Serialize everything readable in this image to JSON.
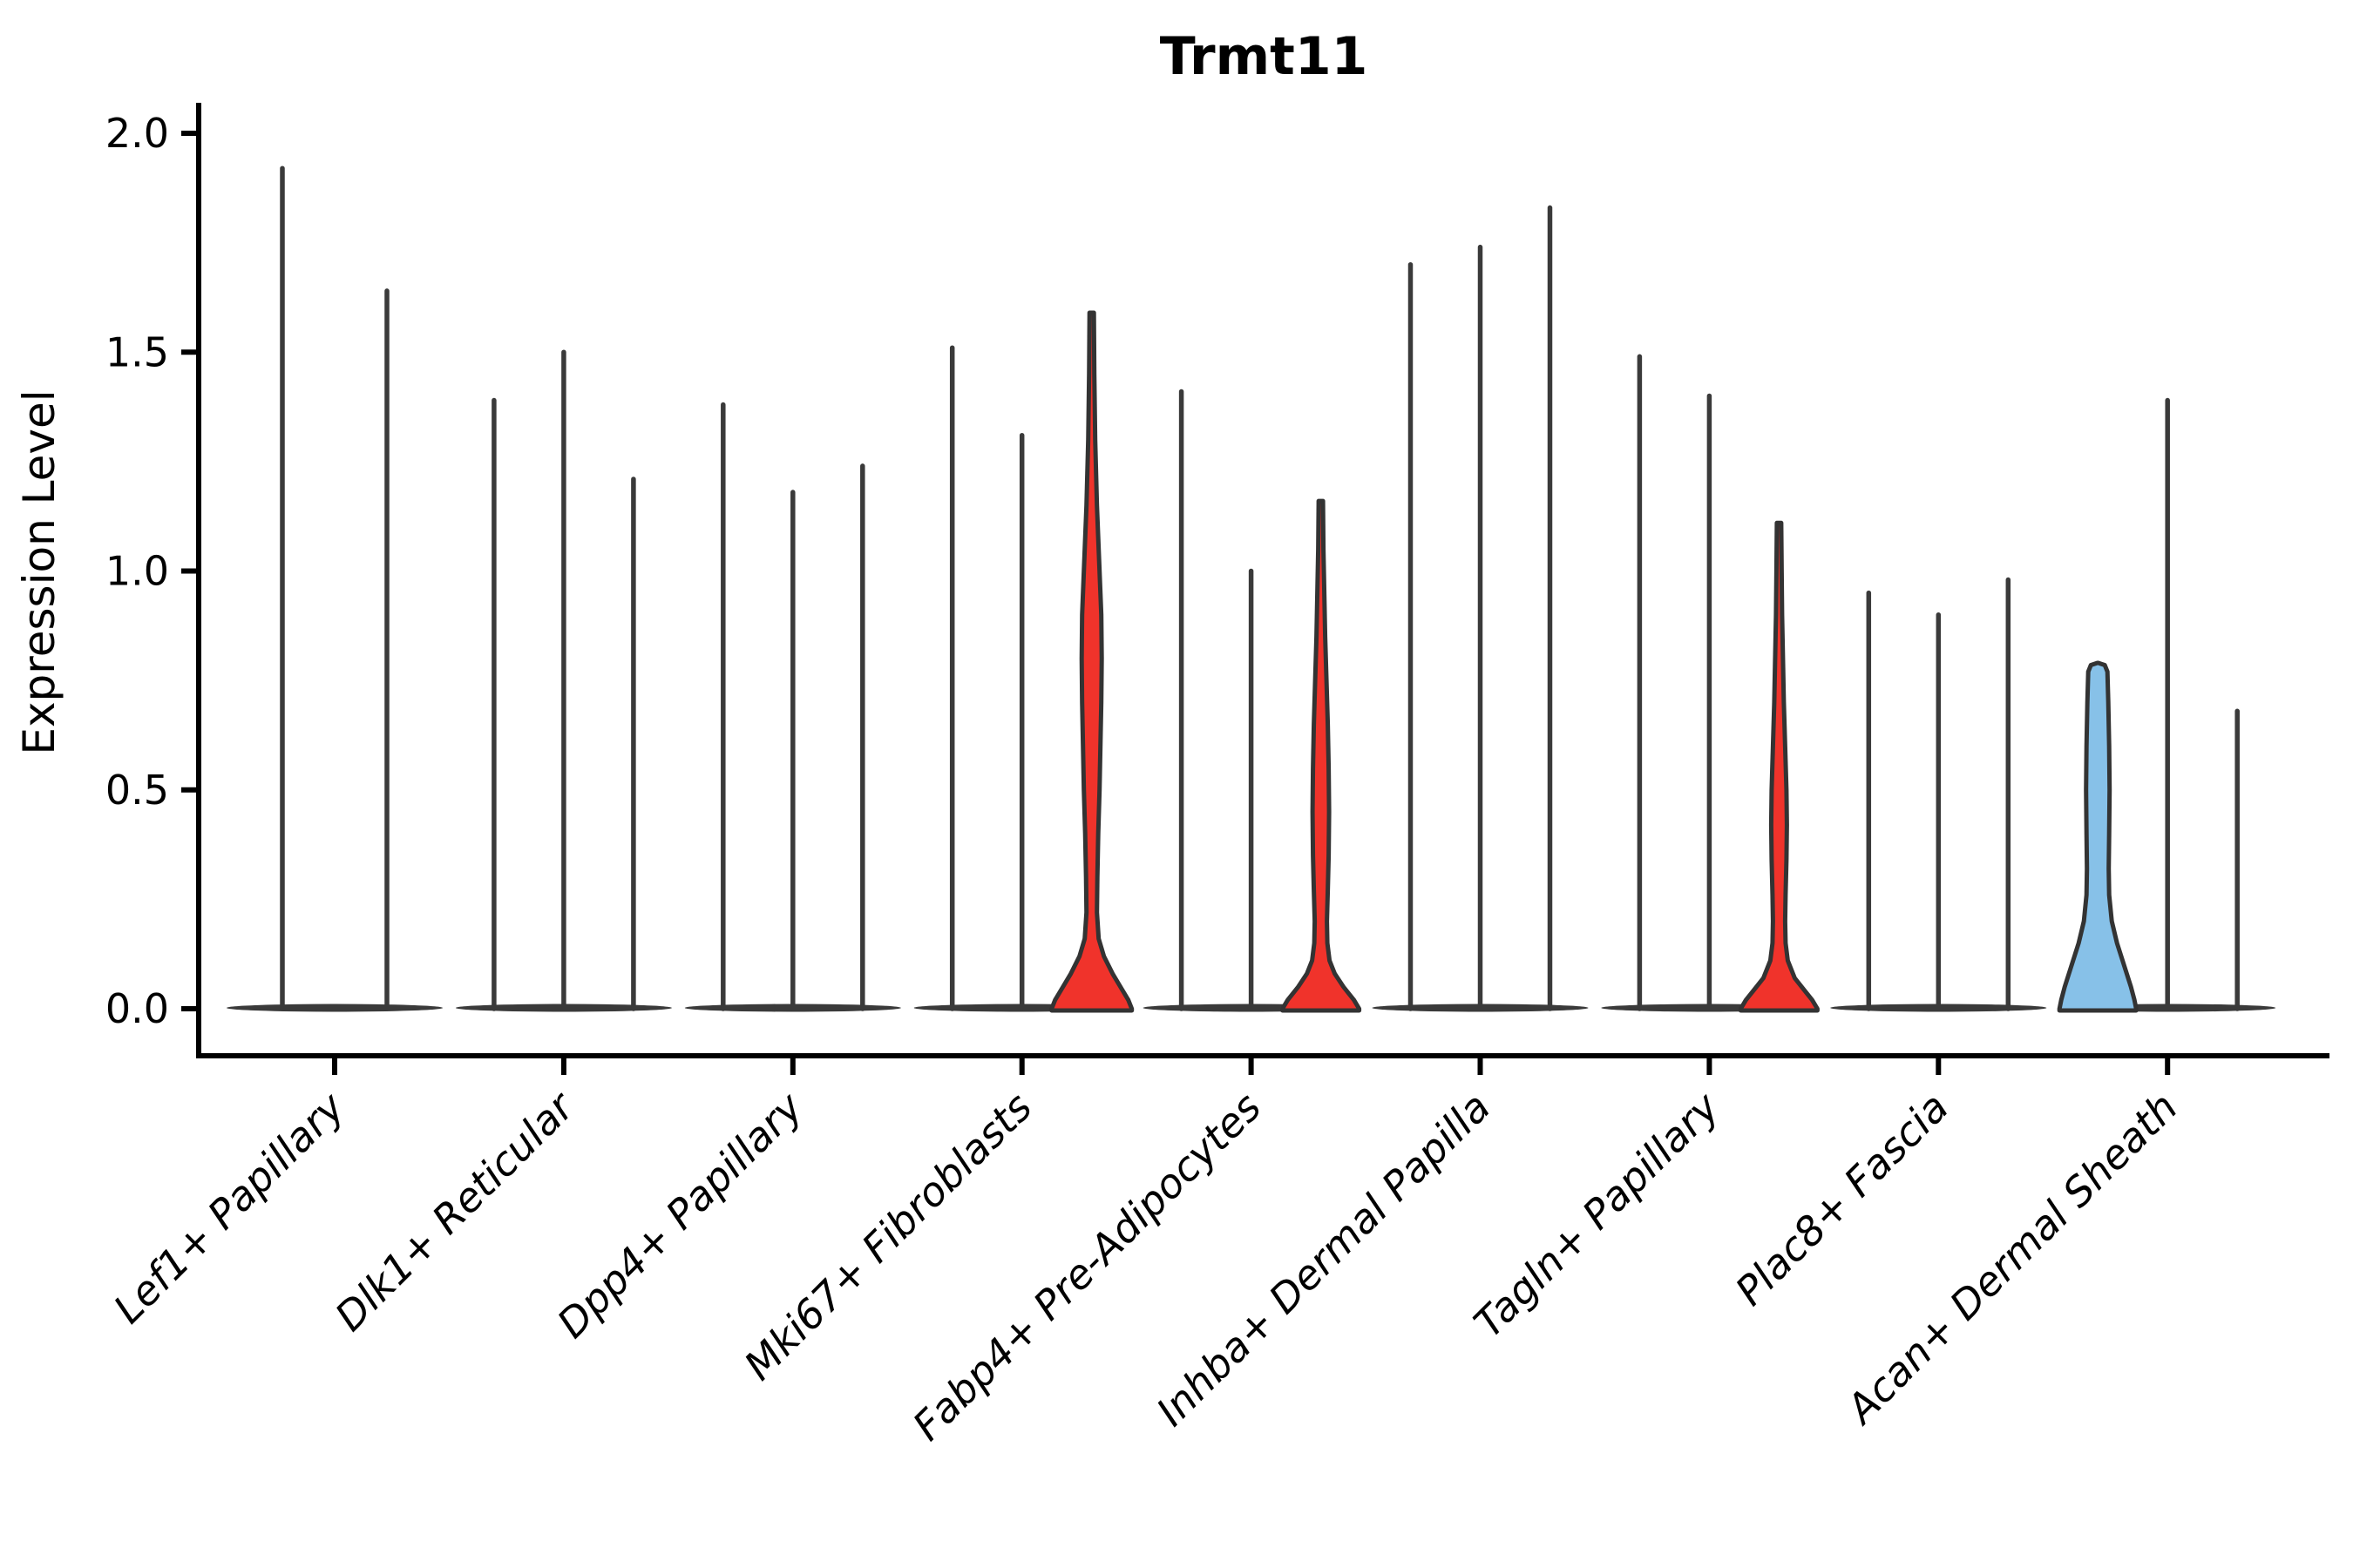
{
  "chart_data": {
    "type": "violin",
    "title": "Trmt11",
    "ylabel": "Expression Level",
    "xlabel": "",
    "ylim": [
      0.0,
      2.0
    ],
    "yticks": [
      0.0,
      0.5,
      1.0,
      1.5,
      2.0
    ],
    "ytick_labels": [
      "0.0",
      "0.5",
      "1.0",
      "1.5",
      "2.0"
    ],
    "grid": false,
    "legend": "none",
    "colors": {
      "spike_violin": "#3a3a3a",
      "highlight_red": "#f0332b",
      "highlight_blue": "#87c1e8",
      "outline": "#333333",
      "axis": "#000000",
      "background": "#ffffff"
    },
    "groups": [
      {
        "label": "Lef1+ Papillary",
        "violins": [
          {
            "max_expression": 1.92,
            "color": "black",
            "shape": "spike"
          },
          {
            "max_expression": 1.64,
            "color": "black",
            "shape": "spike"
          }
        ]
      },
      {
        "label": "Dlk1+ Reticular",
        "violins": [
          {
            "max_expression": 1.39,
            "color": "black",
            "shape": "spike"
          },
          {
            "max_expression": 1.5,
            "color": "black",
            "shape": "spike"
          },
          {
            "max_expression": 1.21,
            "color": "black",
            "shape": "spike"
          }
        ]
      },
      {
        "label": "Dpp4+ Papillary",
        "violins": [
          {
            "max_expression": 1.38,
            "color": "black",
            "shape": "spike"
          },
          {
            "max_expression": 1.18,
            "color": "black",
            "shape": "spike"
          },
          {
            "max_expression": 1.24,
            "color": "black",
            "shape": "spike"
          }
        ]
      },
      {
        "label": "Mki67+ Fibroblasts",
        "violins": [
          {
            "max_expression": 1.51,
            "color": "black",
            "shape": "spike"
          },
          {
            "max_expression": 1.31,
            "color": "black",
            "shape": "spike"
          },
          {
            "max_expression": 1.59,
            "color": "red",
            "shape": "body",
            "profile": [
              [
                1.59,
                2.5
              ],
              [
                1.45,
                3
              ],
              [
                1.3,
                4
              ],
              [
                1.15,
                6
              ],
              [
                1.0,
                9
              ],
              [
                0.9,
                11
              ],
              [
                0.8,
                11.5
              ],
              [
                0.7,
                11
              ],
              [
                0.6,
                10
              ],
              [
                0.5,
                9
              ],
              [
                0.4,
                7.5
              ],
              [
                0.3,
                6.5
              ],
              [
                0.22,
                6
              ],
              [
                0.16,
                8
              ],
              [
                0.12,
                14
              ],
              [
                0.08,
                24
              ],
              [
                0.05,
                33
              ],
              [
                0.02,
                42
              ],
              [
                0.0,
                46
              ]
            ]
          }
        ]
      },
      {
        "label": "Fabp4+ Pre-Adipocytes",
        "violins": [
          {
            "max_expression": 1.41,
            "color": "black",
            "shape": "spike"
          },
          {
            "max_expression": 1.0,
            "color": "black",
            "shape": "spike"
          },
          {
            "max_expression": 1.16,
            "color": "red",
            "shape": "body",
            "profile": [
              [
                1.16,
                2.5
              ],
              [
                1.05,
                3
              ],
              [
                0.95,
                4
              ],
              [
                0.85,
                5
              ],
              [
                0.75,
                6.5
              ],
              [
                0.65,
                8
              ],
              [
                0.55,
                9
              ],
              [
                0.45,
                9.5
              ],
              [
                0.35,
                9
              ],
              [
                0.27,
                8
              ],
              [
                0.2,
                7
              ],
              [
                0.15,
                7.5
              ],
              [
                0.11,
                10
              ],
              [
                0.08,
                16
              ],
              [
                0.05,
                26
              ],
              [
                0.02,
                38
              ],
              [
                0.0,
                44
              ]
            ]
          }
        ]
      },
      {
        "label": "Inhba+ Dermal Papilla",
        "violins": [
          {
            "max_expression": 1.7,
            "color": "black",
            "shape": "spike"
          },
          {
            "max_expression": 1.74,
            "color": "black",
            "shape": "spike"
          },
          {
            "max_expression": 1.83,
            "color": "black",
            "shape": "spike"
          }
        ]
      },
      {
        "label": "Tagln+ Papillary",
        "violins": [
          {
            "max_expression": 1.49,
            "color": "black",
            "shape": "spike"
          },
          {
            "max_expression": 1.4,
            "color": "black",
            "shape": "spike"
          },
          {
            "max_expression": 1.11,
            "color": "red",
            "shape": "body",
            "profile": [
              [
                1.11,
                2.5
              ],
              [
                1.0,
                3
              ],
              [
                0.9,
                3.5
              ],
              [
                0.8,
                4.5
              ],
              [
                0.7,
                5.5
              ],
              [
                0.6,
                7
              ],
              [
                0.5,
                8.5
              ],
              [
                0.42,
                9
              ],
              [
                0.34,
                8.5
              ],
              [
                0.26,
                7.5
              ],
              [
                0.2,
                7
              ],
              [
                0.15,
                7.5
              ],
              [
                0.11,
                10
              ],
              [
                0.07,
                18
              ],
              [
                0.04,
                30
              ],
              [
                0.02,
                38
              ],
              [
                0.0,
                44
              ]
            ]
          }
        ]
      },
      {
        "label": "Plac8+ Fascia",
        "violins": [
          {
            "max_expression": 0.95,
            "color": "black",
            "shape": "spike"
          },
          {
            "max_expression": 0.9,
            "color": "black",
            "shape": "spike"
          },
          {
            "max_expression": 0.98,
            "color": "black",
            "shape": "spike"
          }
        ]
      },
      {
        "label": "Acan+ Dermal Sheath",
        "violins": [
          {
            "max_expression": 0.79,
            "color": "blue",
            "shape": "body",
            "profile": [
              [
                0.79,
                0.5
              ],
              [
                0.785,
                8
              ],
              [
                0.77,
                11
              ],
              [
                0.7,
                12
              ],
              [
                0.6,
                13
              ],
              [
                0.5,
                13.5
              ],
              [
                0.4,
                13
              ],
              [
                0.32,
                12.5
              ],
              [
                0.26,
                13
              ],
              [
                0.2,
                16
              ],
              [
                0.15,
                22
              ],
              [
                0.1,
                30
              ],
              [
                0.05,
                38
              ],
              [
                0.02,
                42
              ],
              [
                0.0,
                44
              ]
            ]
          },
          {
            "max_expression": 1.39,
            "color": "black",
            "shape": "spike"
          },
          {
            "max_expression": 0.68,
            "color": "black",
            "shape": "spike"
          }
        ]
      }
    ]
  }
}
